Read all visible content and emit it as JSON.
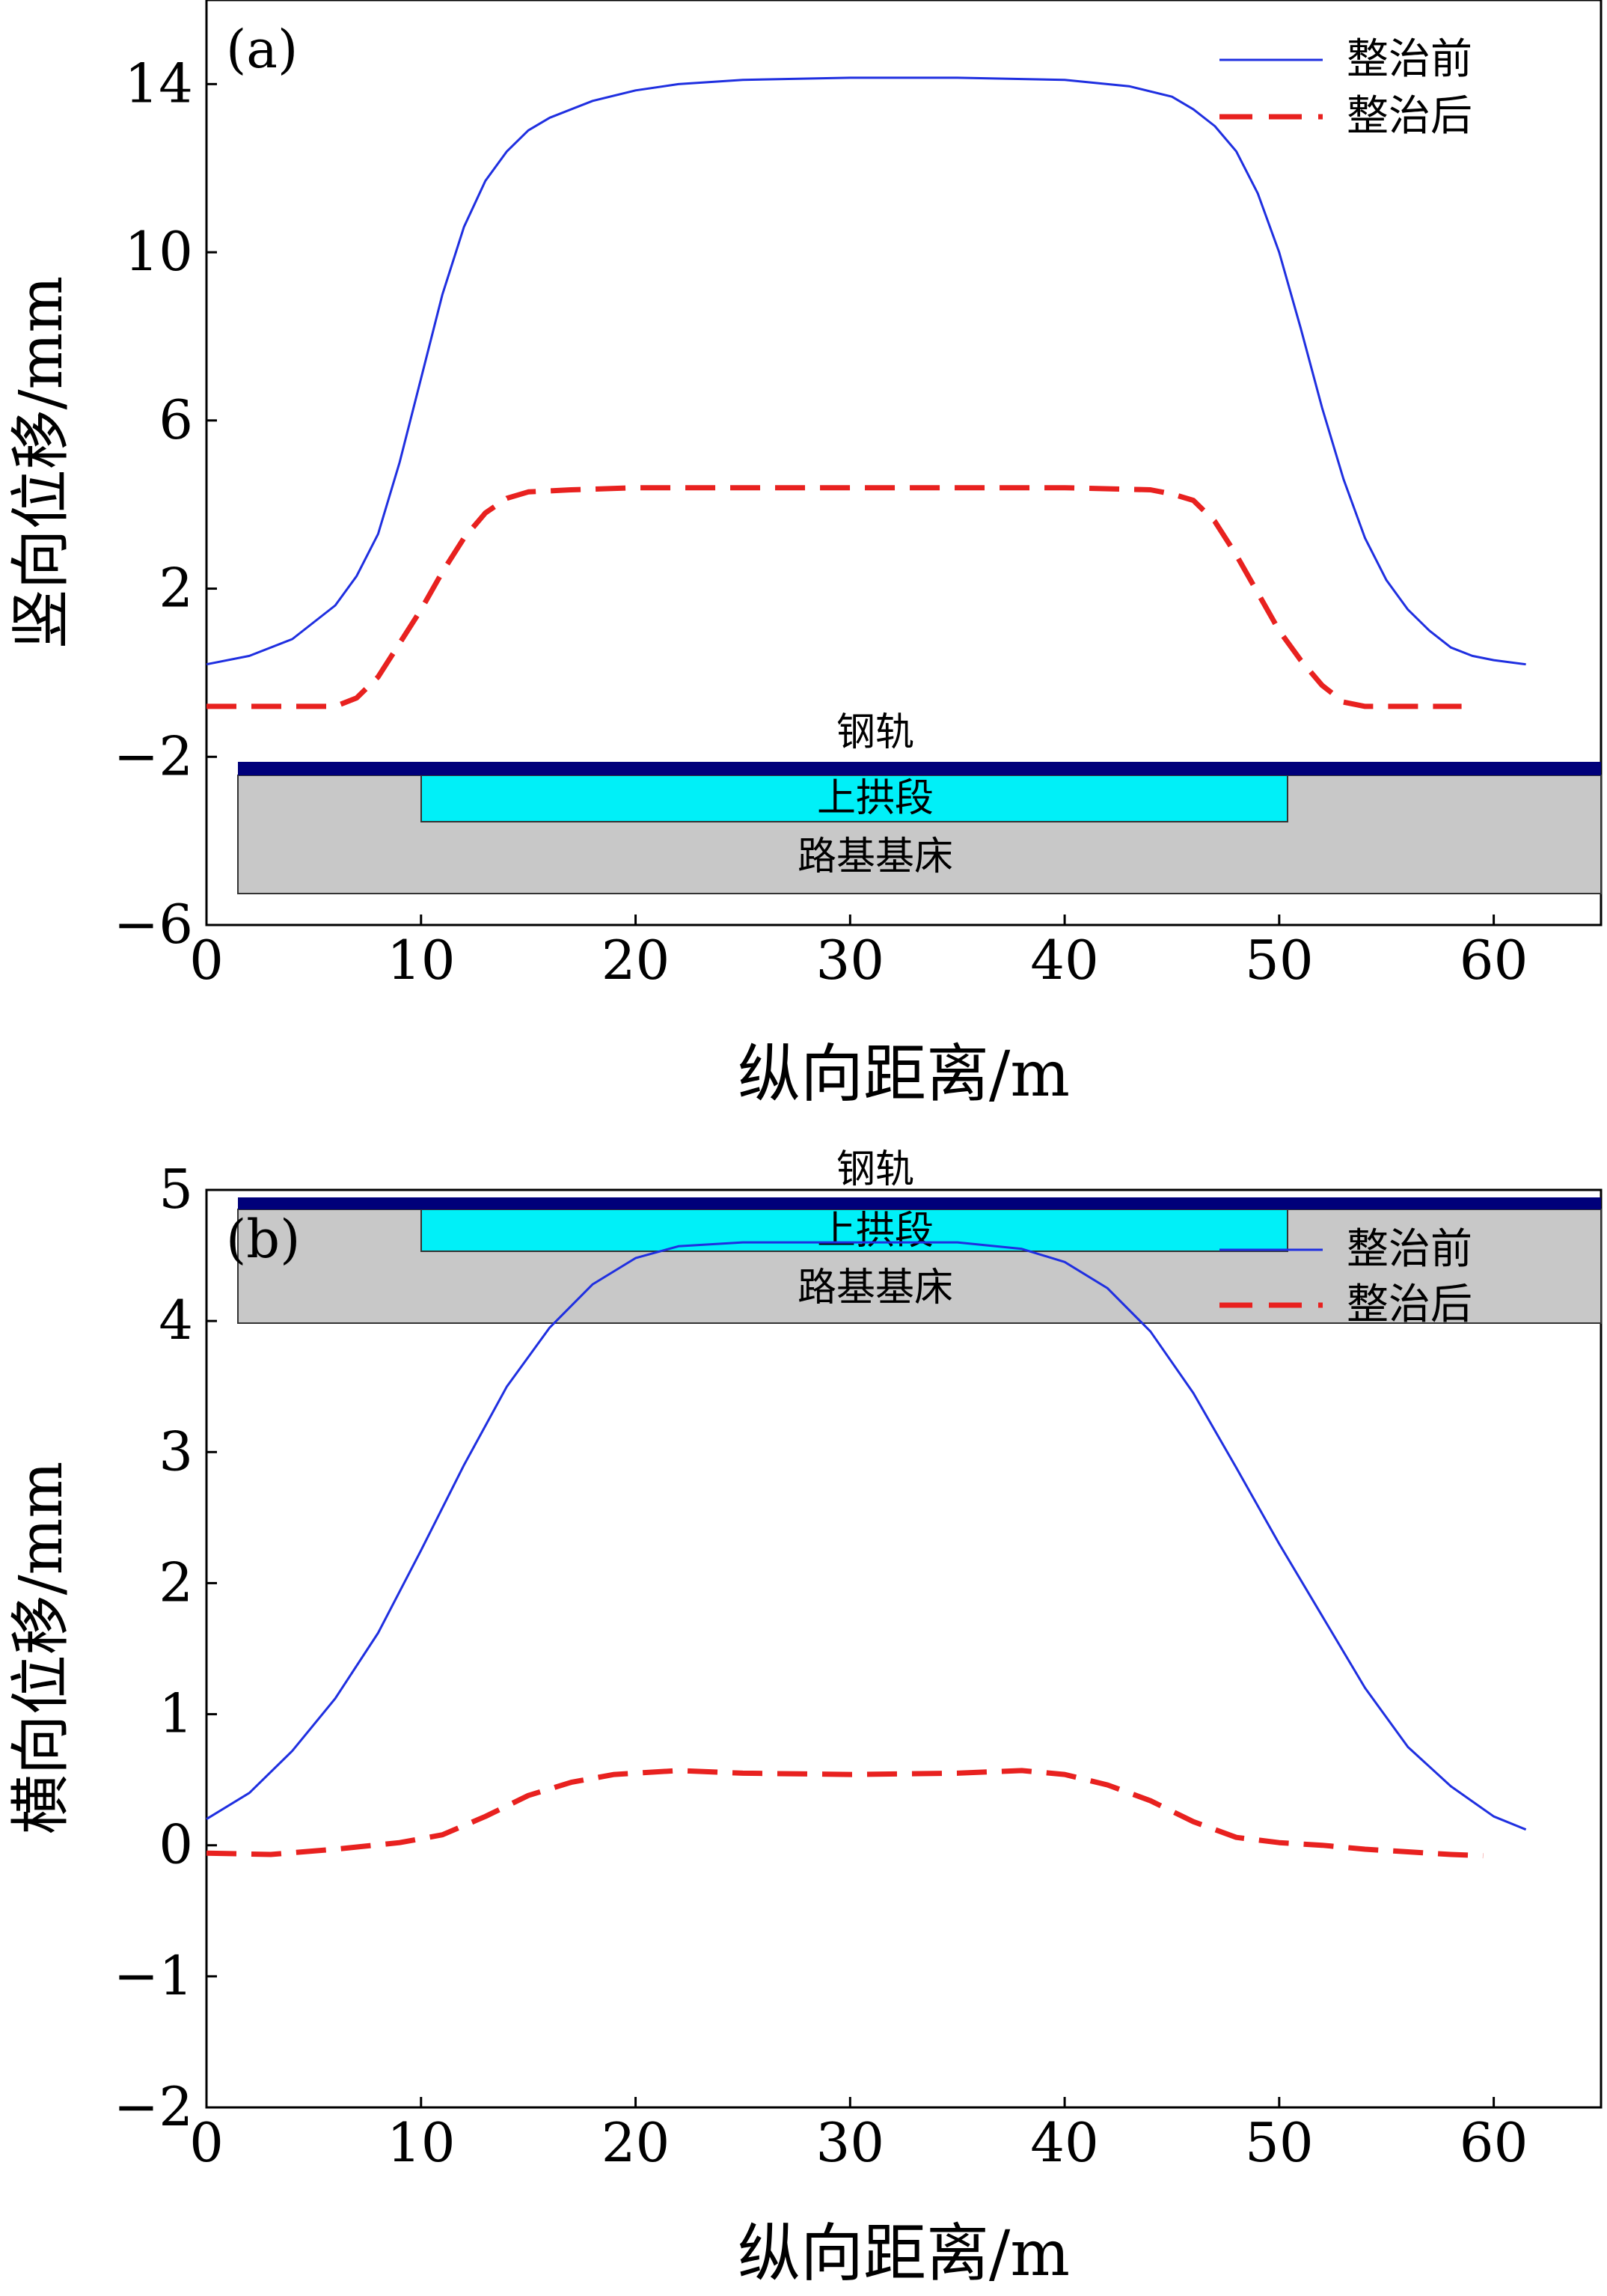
{
  "chart_data": [
    {
      "type": "line",
      "panel_label": "(a)",
      "xlabel": "纵向距离/m",
      "ylabel": "竖向位移/mm",
      "xlim": [
        0,
        65
      ],
      "ylim": [
        -6,
        16
      ],
      "xticks": [
        0,
        10,
        20,
        30,
        40,
        50,
        60
      ],
      "yticks": [
        -6,
        -2,
        2,
        6,
        10,
        14
      ],
      "legend_position": "top-right",
      "series": [
        {
          "name": "整治前",
          "color": "#1f2fe0",
          "dash": "solid",
          "points": [
            [
              0,
              0.2
            ],
            [
              2,
              0.4
            ],
            [
              4,
              0.8
            ],
            [
              6,
              1.6
            ],
            [
              7,
              2.3
            ],
            [
              8,
              3.3
            ],
            [
              9,
              5.0
            ],
            [
              10,
              7.0
            ],
            [
              11,
              9.0
            ],
            [
              12,
              10.6
            ],
            [
              13,
              11.7
            ],
            [
              14,
              12.4
            ],
            [
              15,
              12.9
            ],
            [
              16,
              13.2
            ],
            [
              18,
              13.6
            ],
            [
              20,
              13.85
            ],
            [
              22,
              14.0
            ],
            [
              25,
              14.1
            ],
            [
              30,
              14.15
            ],
            [
              35,
              14.15
            ],
            [
              40,
              14.1
            ],
            [
              43,
              13.95
            ],
            [
              45,
              13.7
            ],
            [
              46,
              13.4
            ],
            [
              47,
              13.0
            ],
            [
              48,
              12.4
            ],
            [
              49,
              11.4
            ],
            [
              50,
              10.0
            ],
            [
              51,
              8.2
            ],
            [
              52,
              6.3
            ],
            [
              53,
              4.6
            ],
            [
              54,
              3.2
            ],
            [
              55,
              2.2
            ],
            [
              56,
              1.5
            ],
            [
              57,
              1.0
            ],
            [
              58,
              0.6
            ],
            [
              59,
              0.4
            ],
            [
              60,
              0.3
            ],
            [
              61.5,
              0.2
            ]
          ]
        },
        {
          "name": "整治后",
          "color": "#e8211f",
          "dash": "dashed",
          "points": [
            [
              0,
              -0.8
            ],
            [
              2,
              -0.8
            ],
            [
              4,
              -0.8
            ],
            [
              6,
              -0.8
            ],
            [
              7,
              -0.6
            ],
            [
              8,
              -0.1
            ],
            [
              9,
              0.7
            ],
            [
              10,
              1.5
            ],
            [
              11,
              2.4
            ],
            [
              12,
              3.2
            ],
            [
              13,
              3.8
            ],
            [
              14,
              4.15
            ],
            [
              15,
              4.3
            ],
            [
              17,
              4.35
            ],
            [
              20,
              4.4
            ],
            [
              25,
              4.4
            ],
            [
              30,
              4.4
            ],
            [
              35,
              4.4
            ],
            [
              40,
              4.4
            ],
            [
              44,
              4.35
            ],
            [
              45,
              4.25
            ],
            [
              46,
              4.1
            ],
            [
              47,
              3.6
            ],
            [
              48,
              2.8
            ],
            [
              49,
              1.9
            ],
            [
              50,
              1.0
            ],
            [
              51,
              0.3
            ],
            [
              52,
              -0.3
            ],
            [
              53,
              -0.7
            ],
            [
              54,
              -0.8
            ],
            [
              56,
              -0.8
            ],
            [
              58.5,
              -0.8
            ]
          ]
        }
      ],
      "schematic": {
        "rail_label": "钢轨",
        "uplift_label": "上拱段",
        "subgrade_label": "路基基床",
        "rail_color": "#00007a",
        "uplift_color": "#00f0f8",
        "subgrade_color": "#c8c8c8"
      }
    },
    {
      "type": "line",
      "panel_label": "(b)",
      "xlabel": "纵向距离/m",
      "ylabel": "横向位移/mm",
      "xlim": [
        0,
        65
      ],
      "ylim": [
        -2,
        5
      ],
      "xticks": [
        0,
        10,
        20,
        30,
        40,
        50,
        60
      ],
      "yticks": [
        -2,
        -1,
        0,
        1,
        2,
        3,
        4,
        5
      ],
      "legend_position": "top-right",
      "series": [
        {
          "name": "整治前",
          "color": "#1f2fe0",
          "dash": "solid",
          "points": [
            [
              0,
              0.2
            ],
            [
              2,
              0.4
            ],
            [
              4,
              0.72
            ],
            [
              6,
              1.12
            ],
            [
              8,
              1.62
            ],
            [
              10,
              2.25
            ],
            [
              12,
              2.9
            ],
            [
              14,
              3.5
            ],
            [
              16,
              3.95
            ],
            [
              18,
              4.28
            ],
            [
              20,
              4.48
            ],
            [
              22,
              4.57
            ],
            [
              25,
              4.6
            ],
            [
              30,
              4.6
            ],
            [
              35,
              4.6
            ],
            [
              38,
              4.55
            ],
            [
              40,
              4.45
            ],
            [
              42,
              4.25
            ],
            [
              44,
              3.92
            ],
            [
              46,
              3.45
            ],
            [
              48,
              2.88
            ],
            [
              50,
              2.3
            ],
            [
              52,
              1.75
            ],
            [
              54,
              1.2
            ],
            [
              56,
              0.75
            ],
            [
              58,
              0.45
            ],
            [
              60,
              0.22
            ],
            [
              61.5,
              0.12
            ]
          ]
        },
        {
          "name": "整治后",
          "color": "#e8211f",
          "dash": "dashed",
          "points": [
            [
              0,
              -0.06
            ],
            [
              3,
              -0.07
            ],
            [
              6,
              -0.03
            ],
            [
              9,
              0.02
            ],
            [
              11,
              0.08
            ],
            [
              13,
              0.22
            ],
            [
              15,
              0.38
            ],
            [
              17,
              0.48
            ],
            [
              19,
              0.54
            ],
            [
              22,
              0.57
            ],
            [
              25,
              0.55
            ],
            [
              30,
              0.54
            ],
            [
              35,
              0.55
            ],
            [
              38,
              0.57
            ],
            [
              40,
              0.54
            ],
            [
              42,
              0.46
            ],
            [
              44,
              0.34
            ],
            [
              46,
              0.18
            ],
            [
              48,
              0.06
            ],
            [
              50,
              0.02
            ],
            [
              52,
              0.0
            ],
            [
              54,
              -0.03
            ],
            [
              56,
              -0.05
            ],
            [
              58,
              -0.07
            ],
            [
              59.5,
              -0.08
            ]
          ]
        }
      ],
      "schematic": {
        "rail_label": "钢轨",
        "uplift_label": "上拱段",
        "subgrade_label": "路基基床",
        "rail_color": "#00007a",
        "uplift_color": "#00f0f8",
        "subgrade_color": "#c8c8c8"
      }
    }
  ]
}
